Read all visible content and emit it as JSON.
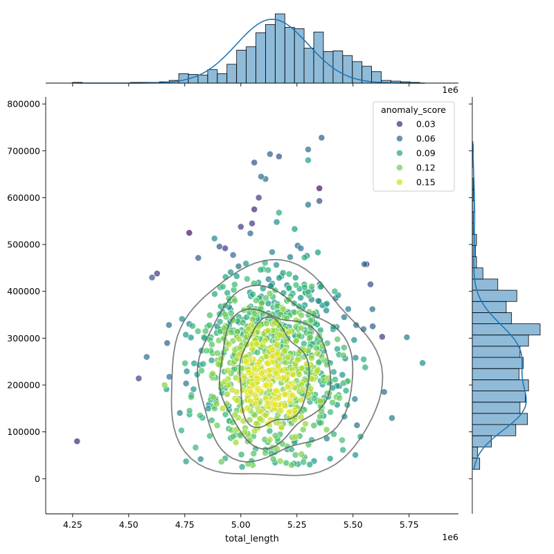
{
  "chart_data": {
    "type": "scatter",
    "subtype": "jointplot",
    "xlabel": "total_length",
    "ylabel": "",
    "x_offset_label": "1e6",
    "top_offset_label": "1e6",
    "x_scale": 1000000,
    "xlim": [
      4.13,
      5.97
    ],
    "ylim": [
      -75000,
      815000
    ],
    "x_ticks": [
      4.25,
      4.5,
      4.75,
      5.0,
      5.25,
      5.5,
      5.75
    ],
    "x_tick_labels": [
      "4.25",
      "4.50",
      "4.75",
      "5.00",
      "5.25",
      "5.50",
      "5.75"
    ],
    "y_ticks": [
      0,
      100000,
      200000,
      300000,
      400000,
      500000,
      600000,
      700000,
      800000
    ],
    "y_tick_labels": [
      "0",
      "100000",
      "200000",
      "300000",
      "400000",
      "500000",
      "600000",
      "700000",
      "800000"
    ],
    "grid": false,
    "colormap": "viridis",
    "point_alpha": 0.7,
    "legend": {
      "title": "anomaly_score",
      "placement": "upper right",
      "entries": [
        {
          "label": "0.03",
          "color": "#472c7a"
        },
        {
          "label": "0.06",
          "color": "#31688e"
        },
        {
          "label": "0.09",
          "color": "#26a784"
        },
        {
          "label": "0.12",
          "color": "#6ece58"
        },
        {
          "label": "0.15",
          "color": "#d0e11c"
        }
      ]
    },
    "generated_points": {
      "count": 1000,
      "x_mean": 5.14,
      "x_std": 0.16,
      "y_mean": 245000,
      "y_std": 105000,
      "score_range": [
        0.0,
        0.16
      ]
    },
    "outliers": [
      {
        "x": 4.27,
        "y": 80000,
        "score": 0.02
      },
      {
        "x": 4.58,
        "y": 260000,
        "score": 0.06
      },
      {
        "x": 4.77,
        "y": 525000,
        "score": 0.01
      },
      {
        "x": 5.06,
        "y": 675000,
        "score": 0.04
      },
      {
        "x": 5.11,
        "y": 640000,
        "score": 0.06
      },
      {
        "x": 5.09,
        "y": 645000,
        "score": 0.06
      },
      {
        "x": 5.17,
        "y": 688000,
        "score": 0.04
      },
      {
        "x": 5.3,
        "y": 703000,
        "score": 0.06
      },
      {
        "x": 5.36,
        "y": 728000,
        "score": 0.05
      },
      {
        "x": 5.3,
        "y": 680000,
        "score": 0.09
      },
      {
        "x": 5.35,
        "y": 620000,
        "score": 0.01
      },
      {
        "x": 5.35,
        "y": 593000,
        "score": 0.04
      },
      {
        "x": 5.3,
        "y": 585000,
        "score": 0.06
      },
      {
        "x": 5.08,
        "y": 600000,
        "score": 0.03
      },
      {
        "x": 5.06,
        "y": 575000,
        "score": 0.02
      },
      {
        "x": 5.17,
        "y": 568000,
        "score": 0.1
      },
      {
        "x": 5.16,
        "y": 548000,
        "score": 0.08
      },
      {
        "x": 5.24,
        "y": 533000,
        "score": 0.09
      },
      {
        "x": 5.0,
        "y": 538000,
        "score": 0.03
      },
      {
        "x": 5.05,
        "y": 545000,
        "score": 0.03
      },
      {
        "x": 4.93,
        "y": 492000,
        "score": 0.03
      },
      {
        "x": 5.56,
        "y": 458000,
        "score": 0.02
      },
      {
        "x": 5.55,
        "y": 458000,
        "score": 0.06
      },
      {
        "x": 5.74,
        "y": 302000,
        "score": 0.07
      },
      {
        "x": 5.81,
        "y": 247000,
        "score": 0.08
      },
      {
        "x": 5.63,
        "y": 303000,
        "score": 0.03
      },
      {
        "x": 4.66,
        "y": 200000,
        "score": 0.13
      },
      {
        "x": 5.13,
        "y": 693000,
        "score": 0.05
      }
    ],
    "top_histogram": {
      "bin_edges": [
        4.25,
        4.293,
        4.336,
        4.379,
        4.422,
        4.465,
        4.508,
        4.551,
        4.594,
        4.637,
        4.68,
        4.723,
        4.766,
        4.809,
        4.852,
        4.895,
        4.938,
        4.981,
        5.024,
        5.067,
        5.11,
        5.153,
        5.196,
        5.239,
        5.282,
        5.325,
        5.368,
        5.411,
        5.454,
        5.497,
        5.54,
        5.583,
        5.626,
        5.669,
        5.712,
        5.755,
        5.798,
        5.841
      ],
      "counts": [
        1,
        0,
        0,
        0,
        0,
        0,
        1,
        1,
        1,
        2,
        4,
        14,
        13,
        12,
        20,
        14,
        28,
        49,
        54,
        75,
        87,
        103,
        83,
        81,
        52,
        76,
        47,
        48,
        41,
        32,
        25,
        17,
        4,
        3,
        2,
        1,
        0
      ],
      "color": "#1f77b4"
    },
    "right_histogram": {
      "bin_edges": [
        20000,
        43900,
        67800,
        91700,
        115600,
        139500,
        163400,
        187300,
        211200,
        235100,
        259000,
        282900,
        306800,
        330700,
        354600,
        378500,
        402400,
        426300,
        450200,
        474100,
        498000,
        521900,
        545800,
        569700,
        593600,
        617500,
        641400,
        665300,
        689200,
        713100,
        737000
      ],
      "counts": [
        7,
        5,
        18,
        41,
        52,
        45,
        50,
        53,
        44,
        48,
        45,
        53,
        64,
        37,
        32,
        42,
        24,
        10,
        4,
        3,
        4,
        1,
        1,
        2,
        1,
        1,
        0,
        1,
        1,
        0
      ],
      "color": "#1f77b4"
    },
    "contour_color": "#5a5a5a"
  }
}
